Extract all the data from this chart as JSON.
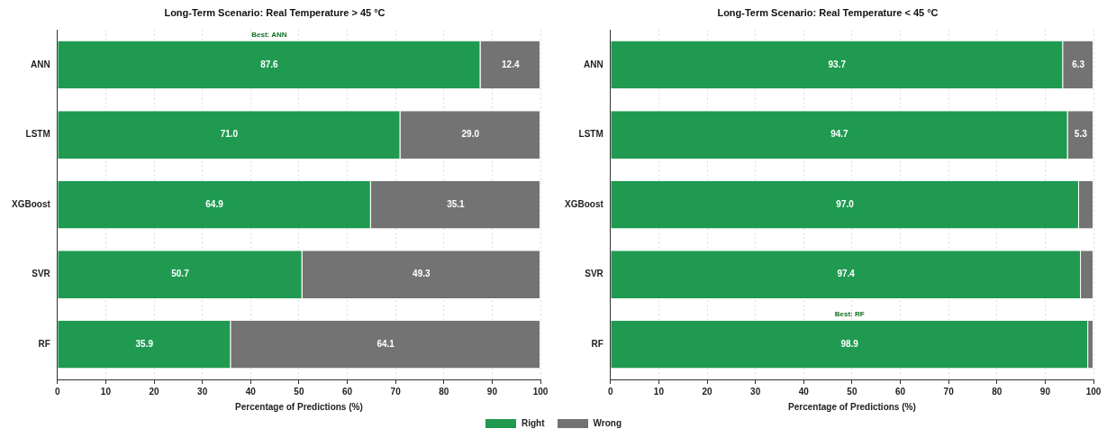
{
  "chart_data": [
    {
      "type": "bar",
      "orientation": "horizontal",
      "stacked": true,
      "title": "Long-Term Scenario: Real Temperature > 45 °C",
      "xlabel": "Percentage of Predictions (%)",
      "categories": [
        "ANN",
        "LSTM",
        "XGBoost",
        "SVR",
        "RF"
      ],
      "series": [
        {
          "name": "Right",
          "color": "#1f9a50",
          "values": [
            87.6,
            71.0,
            64.9,
            50.7,
            35.9
          ],
          "value_labels": [
            "87.6",
            "71.0",
            "64.9",
            "50.7",
            "35.9"
          ]
        },
        {
          "name": "Wrong",
          "color": "#737373",
          "values": [
            12.4,
            29.0,
            35.1,
            49.3,
            64.1
          ],
          "value_labels": [
            "12.4",
            "29.0",
            "35.1",
            "49.3",
            "64.1"
          ]
        }
      ],
      "xlim": [
        0,
        100
      ],
      "xticks": [
        0,
        10,
        20,
        30,
        40,
        50,
        60,
        70,
        80,
        90,
        100
      ],
      "grid": "x",
      "legend": "bottom",
      "annotations": [
        "Best: ANN"
      ]
    },
    {
      "type": "bar",
      "orientation": "horizontal",
      "stacked": true,
      "title": "Long-Term Scenario: Real Temperature < 45 °C",
      "xlabel": "Percentage of Predictions (%)",
      "categories": [
        "ANN",
        "LSTM",
        "XGBoost",
        "SVR",
        "RF"
      ],
      "series": [
        {
          "name": "Right",
          "color": "#1f9a50",
          "values": [
            93.7,
            94.7,
            97.0,
            97.4,
            98.9
          ],
          "value_labels": [
            "93.7",
            "94.7",
            "97.0",
            "97.4",
            "98.9"
          ]
        },
        {
          "name": "Wrong",
          "color": "#737373",
          "values": [
            6.3,
            5.3,
            3.0,
            2.6,
            1.1
          ],
          "value_labels": [
            "6.3",
            "5.3",
            null,
            null,
            null
          ]
        }
      ],
      "xlim": [
        0,
        100
      ],
      "xticks": [
        0,
        10,
        20,
        30,
        40,
        50,
        60,
        70,
        80,
        90,
        100
      ],
      "grid": "x",
      "legend": "bottom",
      "annotations": [
        "Best: RF"
      ]
    }
  ]
}
